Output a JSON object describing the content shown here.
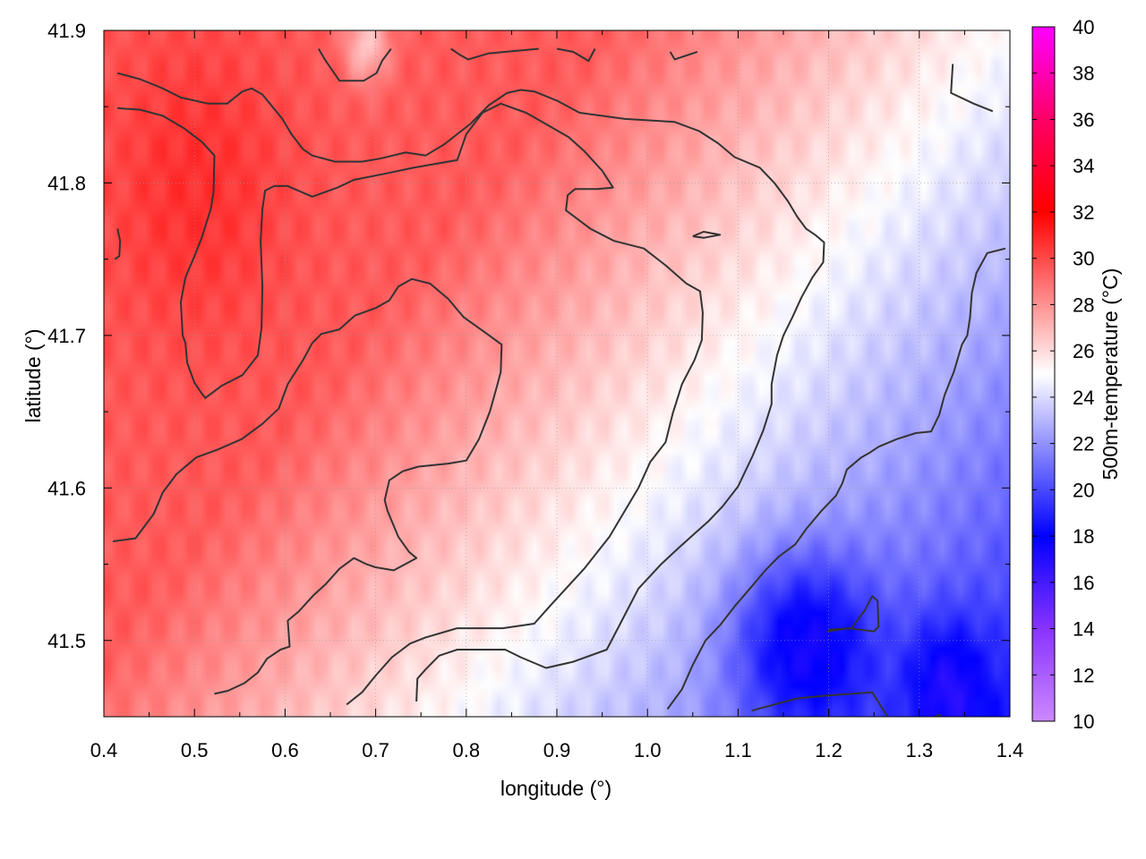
{
  "chart_data": {
    "type": "heatmap",
    "xlabel": "longitude (°)",
    "ylabel": "latitude (°)",
    "colorbar_label": "500m-temperature (°C)",
    "xlim": [
      0.4,
      1.4
    ],
    "ylim": [
      41.45,
      41.9
    ],
    "x_ticks": [
      "0.4",
      "0.5",
      "0.6",
      "0.7",
      "0.8",
      "0.9",
      "1.0",
      "1.1",
      "1.2",
      "1.3",
      "1.4"
    ],
    "y_ticks": [
      "41.5",
      "41.6",
      "41.7",
      "41.8",
      "41.9"
    ],
    "colorbar_range": [
      10,
      40
    ],
    "colorbar_ticks": [
      "10",
      "12",
      "14",
      "16",
      "18",
      "20",
      "22",
      "24",
      "26",
      "28",
      "30",
      "32",
      "34",
      "36",
      "38",
      "40"
    ],
    "grid": true,
    "colormap": [
      {
        "value": 10,
        "color": "#cc88ff"
      },
      {
        "value": 14,
        "color": "#8833ff"
      },
      {
        "value": 18,
        "color": "#0000ff"
      },
      {
        "value": 25,
        "color": "#ffffff"
      },
      {
        "value": 32,
        "color": "#ff0000"
      },
      {
        "value": 36,
        "color": "#ff0066"
      },
      {
        "value": 40,
        "color": "#ff00ff"
      }
    ],
    "contour_color": "#333333",
    "contours": [
      [
        [
          0.415,
          41.872
        ],
        [
          0.44,
          41.868
        ],
        [
          0.465,
          41.862
        ],
        [
          0.485,
          41.856
        ],
        [
          0.515,
          41.852
        ],
        [
          0.536,
          41.852
        ],
        [
          0.553,
          41.86
        ],
        [
          0.563,
          41.862
        ],
        [
          0.575,
          41.858
        ],
        [
          0.597,
          41.842
        ],
        [
          0.607,
          41.832
        ],
        [
          0.62,
          41.822
        ],
        [
          0.63,
          41.818
        ],
        [
          0.655,
          41.814
        ],
        [
          0.685,
          41.814
        ],
        [
          0.705,
          41.816
        ],
        [
          0.733,
          41.82
        ],
        [
          0.755,
          41.818
        ],
        [
          0.775,
          41.825
        ],
        [
          0.79,
          41.832
        ],
        [
          0.805,
          41.839
        ],
        [
          0.825,
          41.851
        ],
        [
          0.845,
          41.859
        ],
        [
          0.86,
          41.861
        ],
        [
          0.875,
          41.86
        ],
        [
          0.9,
          41.854
        ],
        [
          0.925,
          41.846
        ],
        [
          0.975,
          41.842
        ],
        [
          1.03,
          41.84
        ],
        [
          1.057,
          41.834
        ],
        [
          1.078,
          41.826
        ],
        [
          1.096,
          41.817
        ],
        [
          1.124,
          41.81
        ],
        [
          1.14,
          41.8
        ],
        [
          1.155,
          41.788
        ],
        [
          1.165,
          41.778
        ],
        [
          1.175,
          41.77
        ],
        [
          1.185,
          41.766
        ],
        [
          1.195,
          41.761
        ],
        [
          1.194,
          41.748
        ],
        [
          1.182,
          41.738
        ],
        [
          1.17,
          41.725
        ],
        [
          1.16,
          41.712
        ],
        [
          1.15,
          41.7
        ],
        [
          1.143,
          41.687
        ],
        [
          1.137,
          41.668
        ],
        [
          1.137,
          41.655
        ],
        [
          1.128,
          41.638
        ],
        [
          1.116,
          41.621
        ],
        [
          1.1,
          41.601
        ],
        [
          1.083,
          41.588
        ],
        [
          1.067,
          41.578
        ],
        [
          1.048,
          41.568
        ],
        [
          1.035,
          41.561
        ],
        [
          1.015,
          41.55
        ],
        [
          0.99,
          41.534
        ],
        [
          0.97,
          41.511
        ],
        [
          0.955,
          41.494
        ],
        [
          0.918,
          41.486
        ],
        [
          0.888,
          41.482
        ],
        [
          0.86,
          41.489
        ],
        [
          0.843,
          41.494
        ],
        [
          0.79,
          41.494
        ],
        [
          0.77,
          41.49
        ],
        [
          0.755,
          41.481
        ],
        [
          0.746,
          41.475
        ],
        [
          0.745,
          41.46
        ]
      ],
      [
        [
          0.415,
          41.849
        ],
        [
          0.44,
          41.848
        ],
        [
          0.465,
          41.844
        ],
        [
          0.488,
          41.836
        ],
        [
          0.508,
          41.827
        ],
        [
          0.522,
          41.818
        ],
        [
          0.521,
          41.794
        ],
        [
          0.518,
          41.783
        ],
        [
          0.508,
          41.764
        ],
        [
          0.5,
          41.752
        ],
        [
          0.49,
          41.738
        ],
        [
          0.485,
          41.722
        ],
        [
          0.487,
          41.7
        ],
        [
          0.49,
          41.695
        ],
        [
          0.492,
          41.682
        ],
        [
          0.5,
          41.669
        ],
        [
          0.508,
          41.662
        ],
        [
          0.512,
          41.659
        ],
        [
          0.53,
          41.667
        ],
        [
          0.553,
          41.674
        ],
        [
          0.57,
          41.687
        ],
        [
          0.574,
          41.705
        ],
        [
          0.575,
          41.732
        ],
        [
          0.573,
          41.762
        ],
        [
          0.575,
          41.783
        ],
        [
          0.578,
          41.795
        ],
        [
          0.588,
          41.798
        ],
        [
          0.603,
          41.798
        ],
        [
          0.63,
          41.791
        ],
        [
          0.658,
          41.797
        ],
        [
          0.676,
          41.802
        ],
        [
          0.71,
          41.806
        ],
        [
          0.742,
          41.81
        ],
        [
          0.79,
          41.815
        ],
        [
          0.8,
          41.832
        ],
        [
          0.818,
          41.846
        ],
        [
          0.838,
          41.852
        ],
        [
          0.866,
          41.846
        ],
        [
          0.878,
          41.842
        ],
        [
          0.913,
          41.83
        ],
        [
          0.93,
          41.821
        ],
        [
          0.95,
          41.808
        ],
        [
          0.962,
          41.797
        ],
        [
          0.945,
          41.796
        ],
        [
          0.92,
          41.796
        ],
        [
          0.912,
          41.792
        ],
        [
          0.91,
          41.782
        ],
        [
          0.937,
          41.77
        ],
        [
          0.963,
          41.762
        ],
        [
          0.996,
          41.757
        ],
        [
          1.02,
          41.746
        ],
        [
          1.043,
          41.734
        ],
        [
          1.058,
          41.729
        ],
        [
          1.061,
          41.715
        ],
        [
          1.06,
          41.697
        ],
        [
          1.052,
          41.684
        ],
        [
          1.038,
          41.668
        ],
        [
          1.028,
          41.649
        ],
        [
          1.02,
          41.63
        ],
        [
          1.003,
          41.617
        ],
        [
          0.99,
          41.6
        ],
        [
          0.973,
          41.583
        ],
        [
          0.958,
          41.568
        ],
        [
          0.93,
          41.547
        ],
        [
          0.913,
          41.536
        ],
        [
          0.893,
          41.523
        ],
        [
          0.875,
          41.511
        ],
        [
          0.84,
          41.508
        ],
        [
          0.82,
          41.508
        ],
        [
          0.79,
          41.508
        ],
        [
          0.755,
          41.502
        ],
        [
          0.738,
          41.498
        ],
        [
          0.718,
          41.489
        ],
        [
          0.7,
          41.477
        ],
        [
          0.685,
          41.466
        ],
        [
          0.668,
          41.458
        ]
      ],
      [
        [
          0.41,
          41.565
        ],
        [
          0.435,
          41.567
        ],
        [
          0.455,
          41.583
        ],
        [
          0.465,
          41.597
        ],
        [
          0.48,
          41.609
        ],
        [
          0.502,
          41.62
        ],
        [
          0.525,
          41.625
        ],
        [
          0.552,
          41.632
        ],
        [
          0.575,
          41.642
        ],
        [
          0.593,
          41.652
        ],
        [
          0.603,
          41.668
        ],
        [
          0.62,
          41.684
        ],
        [
          0.63,
          41.695
        ],
        [
          0.64,
          41.701
        ],
        [
          0.66,
          41.704
        ],
        [
          0.677,
          41.713
        ],
        [
          0.7,
          41.718
        ],
        [
          0.715,
          41.723
        ],
        [
          0.725,
          41.732
        ],
        [
          0.74,
          41.737
        ],
        [
          0.76,
          41.734
        ],
        [
          0.78,
          41.724
        ],
        [
          0.797,
          41.712
        ],
        [
          0.823,
          41.701
        ],
        [
          0.839,
          41.694
        ],
        [
          0.838,
          41.676
        ],
        [
          0.834,
          41.667
        ],
        [
          0.826,
          41.65
        ],
        [
          0.814,
          41.632
        ],
        [
          0.8,
          41.618
        ],
        [
          0.78,
          41.616
        ],
        [
          0.747,
          41.614
        ],
        [
          0.73,
          41.611
        ],
        [
          0.715,
          41.605
        ],
        [
          0.71,
          41.592
        ],
        [
          0.713,
          41.585
        ],
        [
          0.725,
          41.568
        ],
        [
          0.737,
          41.558
        ],
        [
          0.745,
          41.554
        ],
        [
          0.72,
          41.546
        ],
        [
          0.7,
          41.548
        ],
        [
          0.69,
          41.55
        ],
        [
          0.676,
          41.554
        ],
        [
          0.66,
          41.547
        ],
        [
          0.645,
          41.537
        ],
        [
          0.632,
          41.53
        ],
        [
          0.615,
          41.519
        ],
        [
          0.603,
          41.513
        ],
        [
          0.605,
          41.496
        ],
        [
          0.595,
          41.494
        ],
        [
          0.58,
          41.488
        ],
        [
          0.57,
          41.479
        ],
        [
          0.555,
          41.472
        ],
        [
          0.537,
          41.467
        ],
        [
          0.522,
          41.465
        ]
      ],
      [
        [
          1.022,
          41.455
        ],
        [
          1.038,
          41.468
        ],
        [
          1.05,
          41.484
        ],
        [
          1.064,
          41.5
        ],
        [
          1.08,
          41.51
        ],
        [
          1.097,
          41.523
        ],
        [
          1.113,
          41.534
        ],
        [
          1.13,
          41.546
        ],
        [
          1.145,
          41.555
        ],
        [
          1.163,
          41.563
        ],
        [
          1.175,
          41.573
        ],
        [
          1.192,
          41.585
        ],
        [
          1.208,
          41.595
        ],
        [
          1.215,
          41.603
        ],
        [
          1.22,
          41.612
        ],
        [
          1.236,
          41.62
        ],
        [
          1.245,
          41.623
        ],
        [
          1.255,
          41.627
        ],
        [
          1.275,
          41.632
        ],
        [
          1.296,
          41.636
        ],
        [
          1.313,
          41.637
        ],
        [
          1.322,
          41.648
        ],
        [
          1.328,
          41.661
        ],
        [
          1.338,
          41.676
        ],
        [
          1.347,
          41.694
        ],
        [
          1.353,
          41.7
        ],
        [
          1.356,
          41.712
        ],
        [
          1.358,
          41.728
        ],
        [
          1.363,
          41.741
        ],
        [
          1.375,
          41.754
        ],
        [
          1.395,
          41.757
        ]
      ],
      [
        [
          1.115,
          41.454
        ],
        [
          1.14,
          41.458
        ],
        [
          1.165,
          41.462
        ],
        [
          1.2,
          41.464
        ],
        [
          1.248,
          41.466
        ],
        [
          1.265,
          41.45
        ]
      ],
      [
        [
          1.198,
          41.506
        ],
        [
          1.222,
          41.508
        ],
        [
          1.25,
          41.506
        ],
        [
          1.255,
          41.509
        ],
        [
          1.254,
          41.526
        ],
        [
          1.248,
          41.529
        ],
        [
          1.24,
          41.52
        ],
        [
          1.225,
          41.508
        ],
        [
          1.2,
          41.507
        ]
      ],
      [
        [
          1.05,
          41.765
        ],
        [
          1.062,
          41.768
        ],
        [
          1.08,
          41.766
        ],
        [
          1.062,
          41.764
        ],
        [
          1.05,
          41.765
        ]
      ],
      [
        [
          0.637,
          41.888
        ],
        [
          0.645,
          41.88
        ],
        [
          0.66,
          41.867
        ],
        [
          0.687,
          41.867
        ],
        [
          0.701,
          41.872
        ],
        [
          0.707,
          41.88
        ],
        [
          0.717,
          41.888
        ]
      ],
      [
        [
          0.783,
          41.888
        ],
        [
          0.793,
          41.884
        ],
        [
          0.802,
          41.881
        ],
        [
          0.825,
          41.885
        ],
        [
          0.88,
          41.888
        ]
      ],
      [
        [
          0.9,
          41.888
        ],
        [
          0.918,
          41.886
        ],
        [
          0.935,
          41.88
        ],
        [
          0.942,
          41.888
        ]
      ],
      [
        [
          1.025,
          41.886
        ],
        [
          1.03,
          41.881
        ],
        [
          1.055,
          41.886
        ]
      ],
      [
        [
          0.415,
          41.77
        ],
        [
          0.418,
          41.762
        ],
        [
          0.417,
          41.752
        ],
        [
          0.412,
          41.75
        ]
      ],
      [
        [
          1.337,
          41.878
        ],
        [
          1.335,
          41.859
        ],
        [
          1.36,
          41.852
        ],
        [
          1.381,
          41.847
        ]
      ],
      [
        [
          1.317,
          41.45
        ],
        [
          1.321,
          41.451
        ],
        [
          1.324,
          41.451
        ]
      ]
    ]
  }
}
